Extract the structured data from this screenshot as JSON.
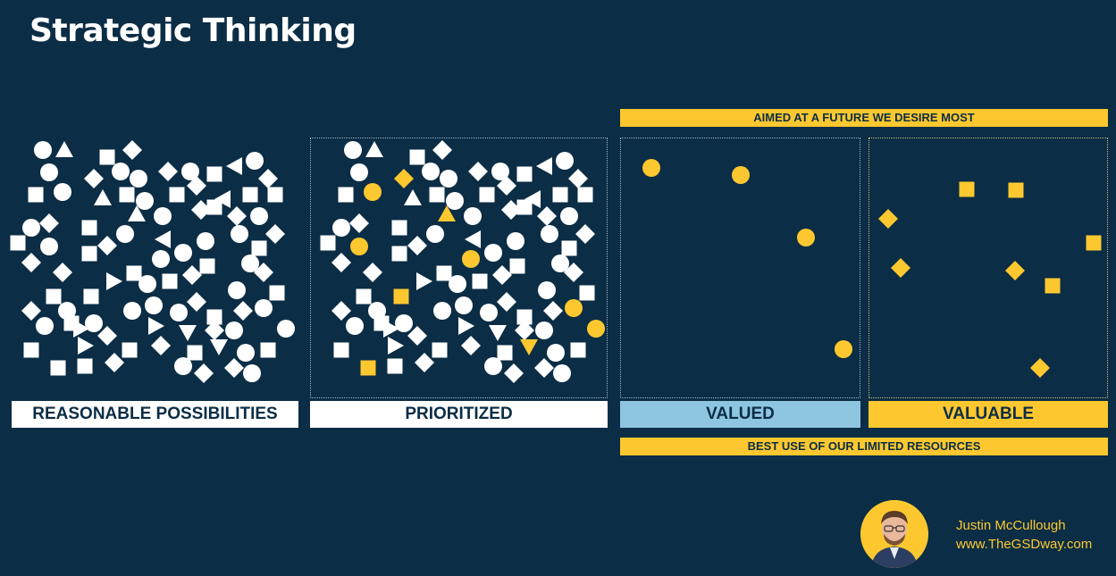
{
  "title": "Strategic Thinking",
  "banners": {
    "top": "AIMED AT A FUTURE WE DESIRE MOST",
    "bottom": "BEST USE OF OUR LIMITED RESOURCES"
  },
  "panels": [
    {
      "label": "REASONABLE POSSIBILITIES"
    },
    {
      "label": "PRIORITIZED"
    },
    {
      "label": "VALUED"
    },
    {
      "label": "VALUABLE"
    }
  ],
  "author": {
    "name": "Justin McCullough",
    "website": "www.TheGSDway.com"
  },
  "colors": {
    "background": "#0b2d45",
    "white": "#ffffff",
    "yellow": "#fdc82f",
    "light_blue": "#8ec6e2"
  }
}
